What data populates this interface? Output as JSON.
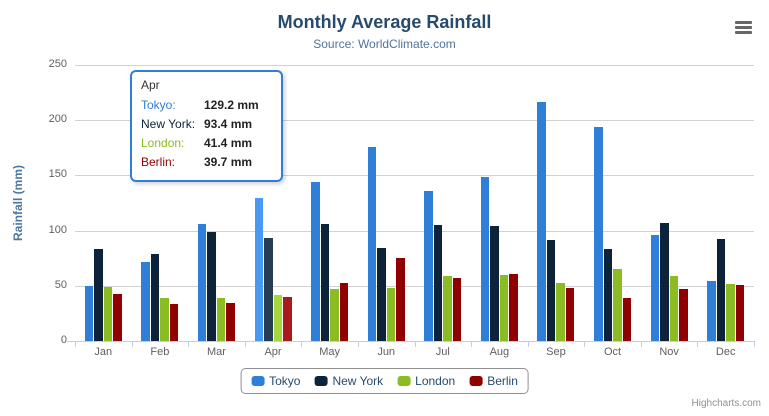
{
  "chart": {
    "title": "Monthly Average Rainfall",
    "subtitle": "Source: WorldClimate.com",
    "credits": "Highcharts.com"
  },
  "chart_data": {
    "type": "bar",
    "title": "Monthly Average Rainfall",
    "subtitle": "Source: WorldClimate.com",
    "xlabel": "",
    "ylabel": "Rainfall (mm)",
    "ylim": [
      0,
      250
    ],
    "y_ticks": [
      0,
      50,
      100,
      150,
      200,
      250
    ],
    "grid": true,
    "legend_position": "bottom",
    "categories": [
      "Jan",
      "Feb",
      "Mar",
      "Apr",
      "May",
      "Jun",
      "Jul",
      "Aug",
      "Sep",
      "Oct",
      "Nov",
      "Dec"
    ],
    "series": [
      {
        "name": "Tokyo",
        "color": "#2f7ed8",
        "hover_color": "#4998f2",
        "values": [
          49.9,
          71.5,
          106.4,
          129.2,
          144.0,
          176.0,
          135.6,
          148.5,
          216.4,
          194.1,
          95.6,
          54.4
        ]
      },
      {
        "name": "New York",
        "color": "#0d233a",
        "hover_color": "#263d54",
        "values": [
          83.6,
          78.8,
          98.5,
          93.4,
          106.0,
          84.5,
          105.0,
          104.3,
          91.2,
          83.5,
          106.6,
          92.3
        ]
      },
      {
        "name": "London",
        "color": "#8bbc21",
        "hover_color": "#a5d63b",
        "values": [
          48.9,
          38.8,
          39.3,
          41.4,
          47.0,
          48.3,
          59.0,
          59.6,
          52.4,
          65.2,
          59.3,
          51.2
        ]
      },
      {
        "name": "Berlin",
        "color": "#910000",
        "hover_color": "#ab1a1a",
        "values": [
          42.4,
          33.2,
          34.5,
          39.7,
          52.6,
          75.5,
          57.4,
          60.4,
          47.6,
          39.1,
          46.8,
          51.1
        ]
      }
    ],
    "hovered_category_index": 3,
    "hovered_category": "Apr"
  },
  "tooltip": {
    "header": "Apr",
    "border_color": "#2f7ed8",
    "rows": [
      {
        "label": "Tokyo:",
        "value": "129.2 mm"
      },
      {
        "label": "New York:",
        "value": "93.4 mm"
      },
      {
        "label": "London:",
        "value": "41.4 mm"
      },
      {
        "label": "Berlin:",
        "value": "39.7 mm"
      }
    ]
  },
  "icons": {
    "export_menu": "hamburger-icon"
  },
  "colors": {
    "title": "#274b6d",
    "subtitle": "#4d759e",
    "axis_labels": "#606060",
    "gridline": "#d2d2d2",
    "axis_line": "#c0d0e0",
    "legend_border": "#909090",
    "credits": "#909090"
  }
}
